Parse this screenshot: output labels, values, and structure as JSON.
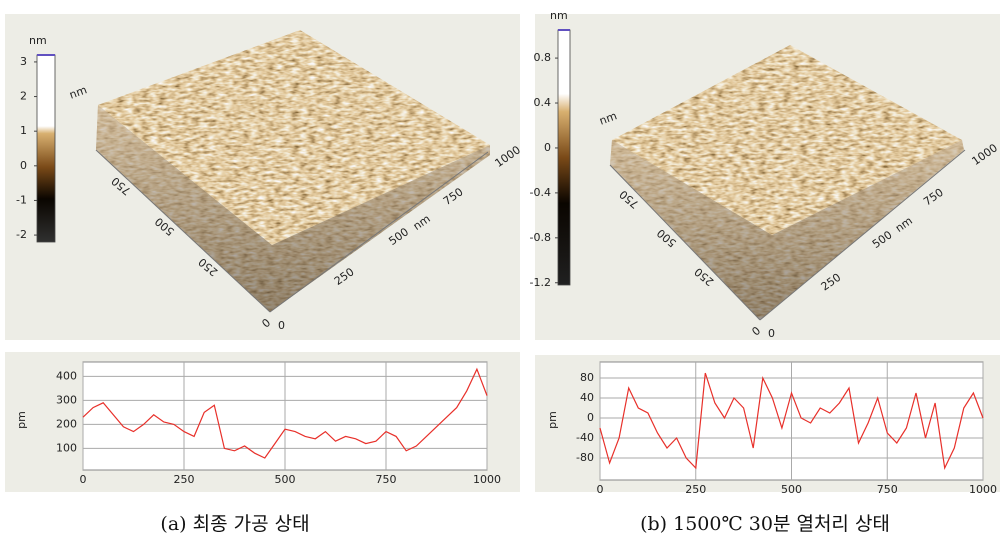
{
  "panels": [
    {
      "caption": "(a) 최종 가공 상태",
      "colorbar": {
        "unit": "nm",
        "lim": [
          -2.2,
          3.2
        ],
        "ticks": [
          3,
          2,
          1,
          0,
          -1,
          -2
        ]
      },
      "surface": {
        "z_unit": "nm",
        "xy_unit": "nm",
        "corner": [
          0,
          0
        ],
        "right_ticks": [
          250,
          500,
          750,
          1000
        ],
        "left_ticks": [
          750,
          500,
          250
        ]
      }
    },
    {
      "caption": "(b) 1500℃ 30분 열처리 상태",
      "colorbar": {
        "unit": "nm",
        "lim": [
          -1.22,
          1.05
        ],
        "ticks": [
          0.8,
          0.4,
          0,
          -0.4,
          -0.8,
          -1.2
        ]
      },
      "surface": {
        "z_unit": "nm",
        "xy_unit": "nm",
        "corner": [
          0,
          0
        ],
        "right_ticks": [
          250,
          500,
          750,
          1000
        ],
        "left_ticks": [
          750,
          500,
          250
        ]
      }
    }
  ],
  "chart_data": [
    {
      "type": "line",
      "ylabel": "pm",
      "x": [
        0,
        25,
        50,
        75,
        100,
        125,
        150,
        175,
        200,
        225,
        250,
        275,
        300,
        325,
        350,
        375,
        400,
        425,
        450,
        475,
        500,
        525,
        550,
        575,
        600,
        625,
        650,
        675,
        700,
        725,
        750,
        775,
        800,
        825,
        850,
        875,
        900,
        925,
        950,
        975,
        1000
      ],
      "series": [
        {
          "color": "#e8302a",
          "values": [
            230,
            270,
            290,
            240,
            190,
            170,
            200,
            240,
            210,
            200,
            170,
            150,
            250,
            280,
            100,
            90,
            110,
            80,
            60,
            120,
            180,
            170,
            150,
            140,
            170,
            130,
            150,
            140,
            120,
            130,
            170,
            150,
            90,
            110,
            150,
            190,
            230,
            270,
            340,
            430,
            320
          ]
        }
      ],
      "xlim": [
        0,
        1000
      ],
      "xticks": [
        0,
        250,
        500,
        750,
        1000
      ],
      "ylim": [
        10,
        460
      ],
      "yticks": [
        100,
        200,
        300,
        400
      ],
      "grid": true
    },
    {
      "type": "line",
      "ylabel": "pm",
      "x": [
        0,
        25,
        50,
        75,
        100,
        125,
        150,
        175,
        200,
        225,
        250,
        275,
        300,
        325,
        350,
        375,
        400,
        425,
        450,
        475,
        500,
        525,
        550,
        575,
        600,
        625,
        650,
        675,
        700,
        725,
        750,
        775,
        800,
        825,
        850,
        875,
        900,
        925,
        950,
        975,
        1000
      ],
      "series": [
        {
          "color": "#e8302a",
          "values": [
            -20,
            -90,
            -40,
            60,
            20,
            10,
            -30,
            -60,
            -40,
            -80,
            -100,
            90,
            30,
            0,
            40,
            20,
            -60,
            80,
            40,
            -20,
            50,
            0,
            -10,
            20,
            10,
            30,
            60,
            -50,
            -10,
            40,
            -30,
            -50,
            -20,
            50,
            -40,
            30,
            -100,
            -60,
            20,
            50,
            0
          ]
        }
      ],
      "xlim": [
        0,
        1000
      ],
      "xticks": [
        0,
        250,
        500,
        750,
        1000
      ],
      "ylim": [
        -124,
        112
      ],
      "yticks": [
        -80,
        -40,
        0,
        40,
        80
      ],
      "grid": true
    }
  ]
}
